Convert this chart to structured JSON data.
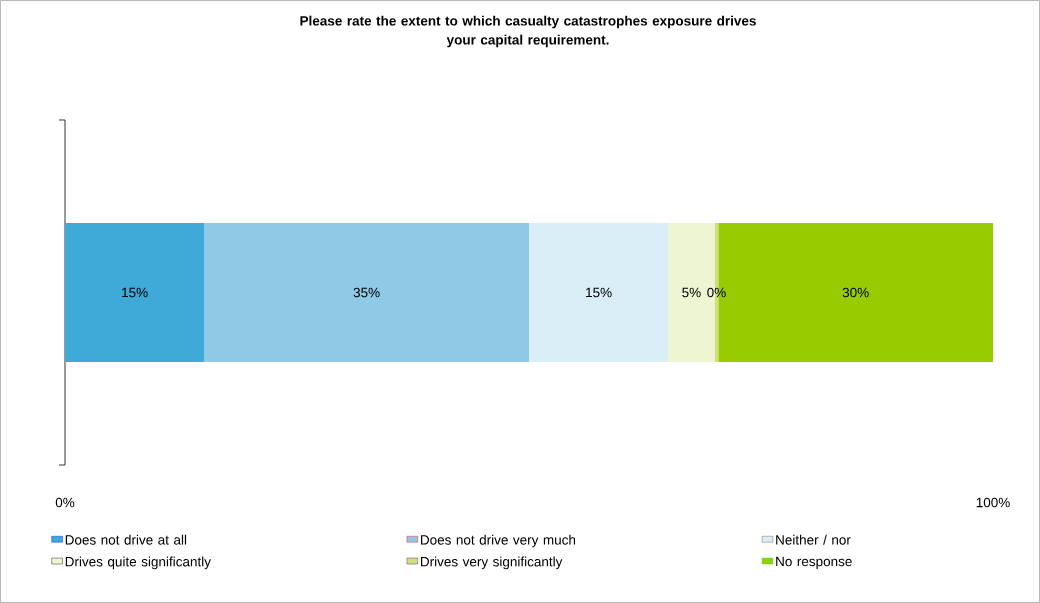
{
  "chart_data": {
    "type": "bar",
    "orientation": "horizontal",
    "stacked": true,
    "title": "Please rate the extent to which casualty catastrophes exposure drives\nyour capital requirement.",
    "categories": [
      null
    ],
    "series": [
      {
        "name": "Does not drive at all",
        "color": "#3fa9d8",
        "values": [
          15
        ],
        "value_labels": [
          "15%"
        ]
      },
      {
        "name": "Does not drive very much",
        "color": "#8ecae6",
        "values": [
          35
        ],
        "value_labels": [
          "35%"
        ]
      },
      {
        "name": "Neither / nor",
        "color": "#d9eef6",
        "values": [
          15
        ],
        "value_labels": [
          "15%"
        ]
      },
      {
        "name": "Drives quite significantly",
        "color": "#eef5d2",
        "values": [
          5
        ],
        "value_labels": [
          "5%"
        ]
      },
      {
        "name": "Drives very significantly",
        "color": "#cde07a",
        "values": [
          0.4
        ],
        "value_labels": [
          "0%"
        ]
      },
      {
        "name": "No response",
        "color": "#99cc00",
        "values": [
          29.6
        ],
        "value_labels": [
          "30%"
        ]
      }
    ],
    "xlim": [
      0,
      100
    ],
    "xticks": [
      {
        "value": 0,
        "label": "0%"
      },
      {
        "value": 100,
        "label": "100%"
      }
    ],
    "legend": "bottom"
  }
}
